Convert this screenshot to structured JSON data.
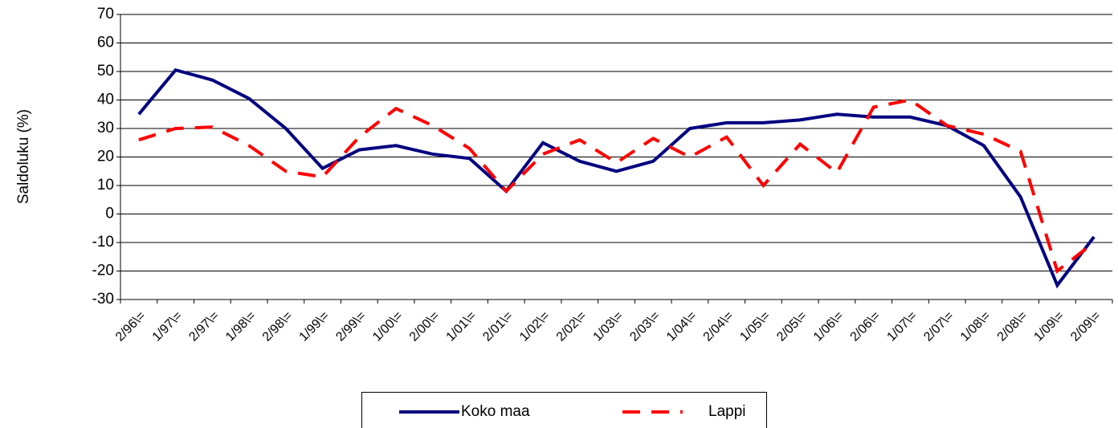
{
  "chart_data": {
    "type": "line",
    "y_label": "Saldoluku (%)",
    "categories": [
      "2/96\\=",
      "1/97\\=",
      "2/97\\=",
      "1/98\\=",
      "2/98\\=",
      "1/99\\=",
      "2/99\\=",
      "1/00\\=",
      "2/00\\=",
      "1/01\\=",
      "2/01\\=",
      "1/02\\=",
      "2/02\\=",
      "1/03\\=",
      "2/03\\=",
      "1/04\\=",
      "2/04\\=",
      "1/05\\=",
      "2/05\\=",
      "1/06\\=",
      "2/06\\=",
      "1/07\\=",
      "2/07\\=",
      "1/08\\=",
      "2/08\\=",
      "1/09\\=",
      "2/09\\="
    ],
    "series": [
      {
        "name": "Koko maa",
        "color": "#000080",
        "dash": "solid",
        "values": [
          35,
          50.5,
          47,
          40.5,
          30,
          16,
          22.5,
          24,
          21,
          19.5,
          8,
          25,
          18.5,
          15,
          18.5,
          30,
          32,
          32,
          33,
          35,
          34,
          34,
          31,
          24,
          6,
          -25,
          -8
        ]
      },
      {
        "name": "Lappi",
        "color": "#ff0000",
        "dash": "dashed",
        "values": [
          26,
          30,
          30.5,
          24,
          15,
          13,
          27,
          37,
          31,
          23,
          8,
          21,
          26,
          18,
          26.5,
          20,
          27,
          10,
          24.5,
          14.5,
          37.5,
          40,
          31,
          28,
          22,
          -20,
          -10
        ]
      }
    ],
    "ylim": [
      -30,
      70
    ],
    "yticks": [
      -30,
      -20,
      -10,
      0,
      10,
      20,
      30,
      40,
      50,
      60,
      70
    ],
    "grid": true
  }
}
